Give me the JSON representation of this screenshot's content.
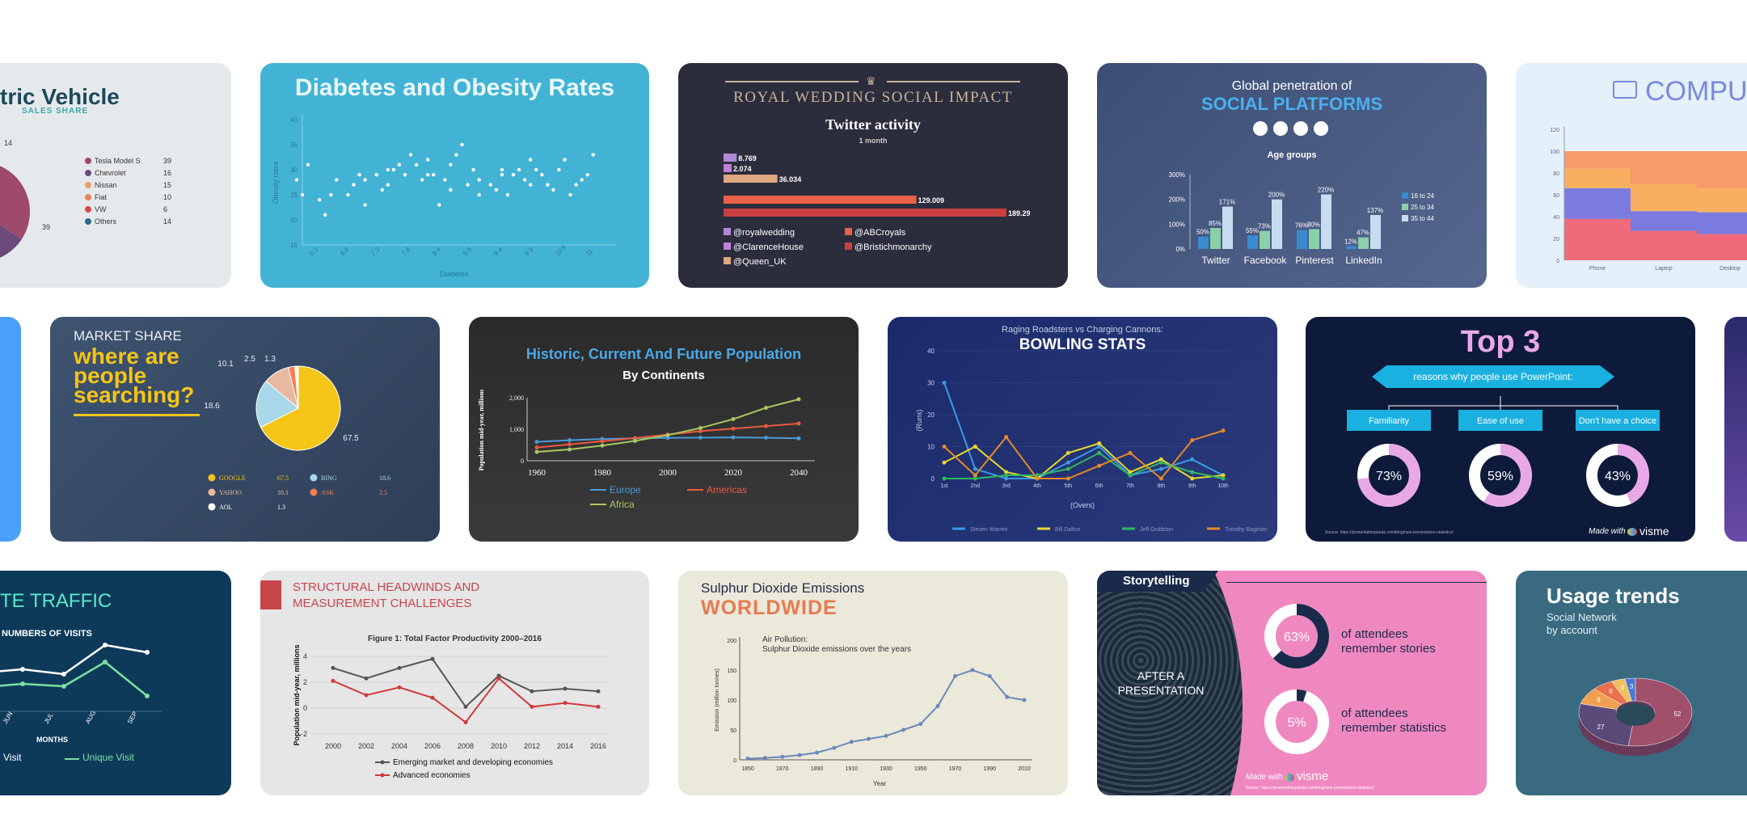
{
  "cards": {
    "ev": {
      "title": "tric Vehicle",
      "subtitle": "SALES SHARE",
      "chart_data": {
        "type": "pie",
        "categories": [
          "Tesla Model S",
          "Chevrolet",
          "Nissan",
          "Fiat",
          "VW",
          "Others"
        ],
        "values": [
          39,
          16,
          15,
          10,
          6,
          14
        ],
        "colors": [
          "#9e4a6a",
          "#6a4a7a",
          "#e8a060",
          "#e8845a",
          "#d84a4a",
          "#2a6a8a"
        ],
        "outer_labels": [
          "14",
          "39"
        ]
      }
    },
    "diabetes": {
      "title": "Diabetes and Obesity Rates",
      "background": "#42b3d5",
      "chart_data": {
        "type": "scatter",
        "title": "Diabetes and Obesity Rates",
        "xlabel": "Diabetes",
        "ylabel": "Obesity rates",
        "xlim": [
          6.5,
          12
        ],
        "ylim": [
          15,
          40
        ],
        "x_ticks": [
          "6.3",
          "6.8",
          "7.3",
          "7.8",
          "8.4",
          "8.9",
          "9.4",
          "9.9",
          "10.5",
          "11"
        ],
        "y_ticks": [
          15,
          20,
          25,
          30,
          35,
          40
        ],
        "x": [
          6.4,
          6.5,
          6.6,
          6.8,
          6.9,
          7.0,
          7.1,
          7.3,
          7.4,
          7.5,
          7.6,
          7.6,
          7.8,
          7.9,
          8.0,
          8.0,
          8.1,
          8.2,
          8.3,
          8.4,
          8.5,
          8.6,
          8.7,
          8.7,
          8.8,
          8.9,
          9.0,
          9.1,
          9.1,
          9.2,
          9.3,
          9.4,
          9.5,
          9.6,
          9.6,
          9.8,
          9.9,
          10.0,
          10.0,
          10.1,
          10.2,
          10.3,
          10.4,
          10.5,
          10.5,
          10.6,
          10.7,
          10.8,
          10.9,
          11.0,
          11.1,
          11.2,
          11.3,
          11.4,
          11.5,
          11.6
        ],
        "y": [
          28,
          25,
          31,
          24,
          21,
          25,
          28,
          25,
          27,
          29,
          23,
          28,
          29,
          26,
          30,
          27,
          30,
          31,
          29,
          33,
          31,
          28,
          32,
          29,
          29,
          23,
          28,
          31,
          26,
          33,
          35,
          27,
          30,
          25,
          28,
          27,
          26,
          30,
          29,
          25,
          29,
          30,
          28,
          32,
          27,
          30,
          29,
          27,
          26,
          30,
          32,
          25,
          27,
          28,
          29,
          33
        ]
      }
    },
    "royal": {
      "title": "ROYAL WEDDING SOCIAL IMPACT",
      "subtitle": "Twitter activity",
      "period": "1 month",
      "chart_data": {
        "type": "bar",
        "title": "Twitter activity",
        "categories": [
          "@royalwedding",
          "@ClarenceHouse",
          "@Queen_UK",
          "@ABCroyals",
          "@Bristichmonarchy"
        ],
        "values": [
          8.769,
          2.074,
          36.034,
          129.009,
          189.29
        ],
        "labels": [
          "8.769",
          "2.074",
          "36.034",
          "129.009",
          "189.29"
        ],
        "colors": [
          "#b08ad8",
          "#c080d8",
          "#e0a880",
          "#e86048",
          "#c84040"
        ]
      }
    },
    "social": {
      "title_small": "Global penetration of",
      "title_big": "SOCIAL PLATFORMS",
      "legend_title": "Age groups",
      "chart_data": {
        "type": "bar",
        "categories": [
          "Twitter",
          "Facebook",
          "Pinterest",
          "LinkedIn"
        ],
        "y_ticks": [
          "0%",
          "100%",
          "200%",
          "300%"
        ],
        "ylim": [
          0,
          300
        ],
        "series": [
          {
            "name": "16 to 24",
            "values": [
              50,
              55,
              76,
              12
            ],
            "labels": [
              "50%",
              "55%",
              "76%",
              "12%"
            ],
            "color": "#3a8ad0"
          },
          {
            "name": "25 to 34",
            "values": [
              85,
              73,
              80,
              47
            ],
            "labels": [
              "85%",
              "73%",
              "80%",
              "47%"
            ],
            "color": "#8ad0a8"
          },
          {
            "name": "35 to 44",
            "values": [
              171,
              200,
              220,
              137
            ],
            "labels": [
              "171%",
              "200%",
              "220%",
              "137%"
            ],
            "color": "#c8dcf0"
          }
        ]
      }
    },
    "computer": {
      "title": "COMPUTER",
      "chart_data": {
        "type": "area",
        "categories": [
          "Phone",
          "Laptop",
          "Desktop"
        ],
        "y_ticks": [
          0,
          20,
          40,
          60,
          80,
          100,
          120
        ],
        "ylim": [
          0,
          120
        ],
        "series": [
          {
            "name": "",
            "values": [
              38,
              27,
              24
            ],
            "color": "#f06a7a"
          },
          {
            "name": "",
            "values": [
              28,
              18,
              20
            ],
            "color": "#7a7ae0"
          },
          {
            "name": "",
            "values": [
              18,
              25,
              22
            ],
            "color": "#f8b060"
          },
          {
            "name": "",
            "values": [
              16,
              30,
              34
            ],
            "color": "#f89a6a"
          }
        ]
      }
    },
    "market": {
      "kicker": "MARKET SHARE",
      "headline": [
        "where are",
        "people",
        "searching?"
      ],
      "chart_data": {
        "type": "pie",
        "categories": [
          "GOOGLE",
          "BING",
          "YAHOO",
          "ASK",
          "AOL"
        ],
        "values": [
          67.5,
          18.6,
          10.1,
          2.5,
          1.3
        ],
        "labels": [
          "67.5",
          "18.6",
          "10.1",
          "2.5",
          "1.3"
        ],
        "colors": [
          "#f5c518",
          "#a8d8ea",
          "#e8b8a0",
          "#f08050",
          "#ffffff"
        ]
      }
    },
    "population": {
      "title": "Historic, Current And Future Population",
      "subtitle": "By Continents",
      "chart_data": {
        "type": "line",
        "x": [
          1960,
          1970,
          1980,
          1990,
          2000,
          2010,
          2020,
          2030,
          2040
        ],
        "ylabel": "Population mid-year, millions",
        "y_ticks": [
          "0",
          "1,000",
          "2,000"
        ],
        "ylim": [
          0,
          2000
        ],
        "series": [
          {
            "name": "Europe",
            "values": [
              600,
              650,
              690,
              710,
              725,
              735,
              740,
              730,
              710
            ],
            "color": "#4a9ad8"
          },
          {
            "name": "Americas",
            "values": [
              420,
              520,
              620,
              720,
              830,
              940,
              1020,
              1100,
              1180
            ],
            "color": "#e85a40"
          },
          {
            "name": "Africa",
            "values": [
              280,
              360,
              480,
              630,
              810,
              1040,
              1320,
              1680,
              1950
            ],
            "color": "#a8c860"
          }
        ]
      }
    },
    "bowling": {
      "kicker": "Raging Roadsters vs Charging Cannons:",
      "title": "BOWLING STATS",
      "chart_data": {
        "type": "line",
        "categories": [
          "1st",
          "2nd",
          "3rd",
          "4th",
          "5th",
          "6th",
          "7th",
          "8th",
          "9th",
          "10th"
        ],
        "xlabel": "(Overs)",
        "ylabel": "(Runs)",
        "y_ticks": [
          0,
          10,
          20,
          30,
          40
        ],
        "ylim": [
          0,
          40
        ],
        "series": [
          {
            "name": "Steven Warren",
            "values": [
              30,
              3,
              0,
              0,
              5,
              10,
              1,
              3,
              6,
              1
            ],
            "color": "#3a9ae8"
          },
          {
            "name": "Bill Dalton",
            "values": [
              5,
              10,
              2,
              0,
              8,
              11,
              2,
              6,
              0,
              1
            ],
            "color": "#e8d830"
          },
          {
            "name": "Jeff Goldston",
            "values": [
              0,
              0,
              1,
              1,
              3,
              8,
              1,
              5,
              2,
              0
            ],
            "color": "#30b860"
          },
          {
            "name": "Timothy Bagman",
            "values": [
              10,
              1,
              13,
              0,
              0,
              4,
              8,
              0,
              12,
              15
            ],
            "color": "#e8882a"
          }
        ]
      }
    },
    "top3": {
      "title": "Top 3",
      "banner": "reasons why people use PowerPoint:",
      "options": [
        "Familiarity",
        "Ease of use",
        "Don't have a choice"
      ],
      "chart_data": {
        "type": "pie",
        "categories": [
          "Familiarity",
          "Ease of use",
          "Don't have a choice"
        ],
        "values": [
          73,
          59,
          43
        ],
        "labels": [
          "73%",
          "59%",
          "43%"
        ]
      },
      "source": "Source: https://presentationpanda.com/blog/new-presentation-statistics/",
      "made_with": "Made with",
      "brand": "visme"
    },
    "traffic": {
      "title": "TE TRAFFIC",
      "subtitle": "NUMBERS OF VISITS",
      "xlabel": "MONTHS",
      "chart_data": {
        "type": "line",
        "categories": [
          "JUN",
          "JUL",
          "AUG",
          "SEP"
        ],
        "series": [
          {
            "name": "Visit",
            "values": [
              52,
              48,
              72,
              66
            ],
            "color": "#ffffff"
          },
          {
            "name": "Unique Visit",
            "values": [
              40,
              38,
              58,
              30
            ],
            "color": "#7ae0a0"
          }
        ]
      },
      "legend": [
        "l Visit",
        "Unique Visit"
      ]
    },
    "headwinds": {
      "title": [
        "STRUCTURAL HEADWINDS AND",
        "MEASUREMENT CHALLENGES"
      ],
      "figure_title": "Figure 1: Total Factor Productivity 2000–2016",
      "chart_data": {
        "type": "line",
        "categories": [
          "2000",
          "2002",
          "2004",
          "2006",
          "2008",
          "2010",
          "2012",
          "2014",
          "2016"
        ],
        "ylabel": "Population mid-year, millions",
        "y_ticks": [
          "-2",
          "0",
          "2",
          "4"
        ],
        "ylim": [
          -2,
          4
        ],
        "series": [
          {
            "name": "Emerging market and developing economies",
            "values": [
              3.1,
              2.3,
              3.1,
              3.8,
              0.1,
              2.5,
              1.3,
              1.5,
              1.3
            ],
            "color": "#555555"
          },
          {
            "name": "Advanced economies",
            "values": [
              2.1,
              1.0,
              1.6,
              0.8,
              -1.1,
              2.3,
              0.1,
              0.4,
              0.1
            ],
            "color": "#d03a3a"
          }
        ]
      }
    },
    "sulphur": {
      "title": "Sulphur Dioxide Emissions",
      "headline": "WORLDWIDE",
      "caption": [
        "Air Pollution:",
        "Sulphur Dioxide emissions over the years"
      ],
      "chart_data": {
        "type": "line",
        "x": [
          1850,
          1860,
          1870,
          1880,
          1890,
          1900,
          1910,
          1920,
          1930,
          1940,
          1950,
          1960,
          1970,
          1980,
          1990,
          2000,
          2010
        ],
        "xlabel": "Year",
        "ylabel": "Emission (million tonnes)",
        "x_ticks": [
          "1850",
          "1870",
          "1890",
          "1910",
          "1930",
          "1950",
          "1970",
          "1990",
          "2010"
        ],
        "y_ticks": [
          "0",
          "50",
          "100",
          "150",
          "200"
        ],
        "ylim": [
          0,
          200
        ],
        "series": [
          {
            "name": "",
            "values": [
              2,
              3,
              5,
              8,
              12,
              20,
              30,
              35,
              40,
              50,
              60,
              90,
              140,
              150,
              140,
              105,
              100
            ],
            "color": "#6a8ab8"
          }
        ]
      }
    },
    "storytelling": {
      "tag": "Storytelling",
      "center_text": [
        "AFTER A",
        "PRESENTATION"
      ],
      "chart_data": {
        "type": "pie",
        "categories": [
          "of attendees remember stories",
          "of attendees remember statistics"
        ],
        "values": [
          63,
          5
        ],
        "labels": [
          "63%",
          "5%"
        ]
      },
      "stat1": [
        "of attendees",
        "remember stories"
      ],
      "stat2": [
        "of attendees",
        "remember statistics"
      ],
      "made_with": "Made with",
      "brand": "visme",
      "source": "Source: https://presentationpanda.com/blog/new-presentation-statistics/"
    },
    "usage": {
      "title": "Usage trends",
      "subtitle": [
        "Social Network",
        "by account"
      ],
      "chart_data": {
        "type": "pie",
        "categories": [
          "",
          "",
          "",
          "",
          "",
          ""
        ],
        "values": [
          52,
          27,
          8,
          6,
          4,
          3
        ],
        "labels": [
          "52",
          "27",
          "8",
          "6",
          "4",
          "3"
        ],
        "colors": [
          "#a0506a",
          "#5a4a7a",
          "#f0a050",
          "#e8704a",
          "#f0c060",
          "#4a7ad0"
        ]
      }
    }
  }
}
